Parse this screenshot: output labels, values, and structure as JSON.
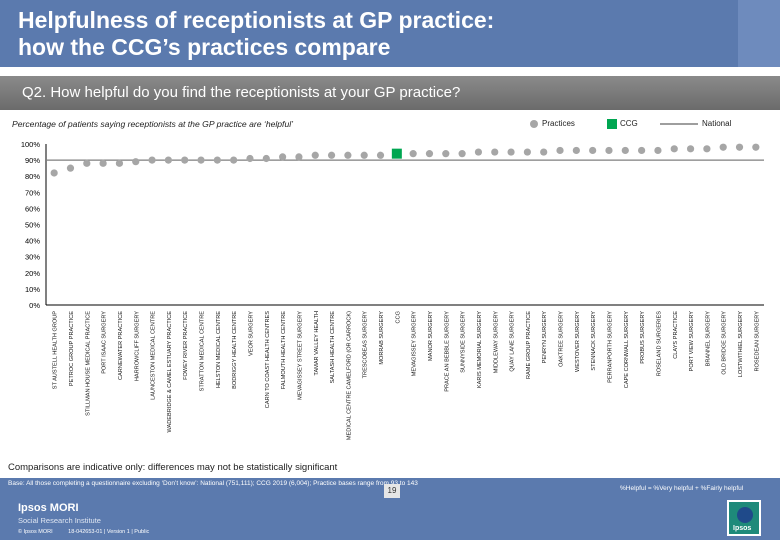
{
  "header": {
    "title_line1": "Helpfulness of receptionists at GP practice:",
    "title_line2": "how the CCG’s practices compare"
  },
  "question": "Q2. How helpful do you find the receptionists at your GP practice?",
  "subtitle": "Percentage of patients saying receptionists at the GP practice are ‘helpful’",
  "legend": {
    "practices": "Practices",
    "ccg": "CCG",
    "national": "National"
  },
  "colors": {
    "practice": "#a6a6a6",
    "ccg": "#00a651",
    "national": "#7f7f7f",
    "axis": "#000000",
    "grid_label": "#000000"
  },
  "chart_data": {
    "type": "scatter",
    "title": "Percentage of patients saying receptionists at the GP practice are ‘helpful’",
    "ylim": [
      0,
      100
    ],
    "yticks": [
      "0%",
      "10%",
      "20%",
      "30%",
      "40%",
      "50%",
      "60%",
      "70%",
      "80%",
      "90%",
      "100%"
    ],
    "ytick_values": [
      0,
      10,
      20,
      30,
      40,
      50,
      60,
      70,
      80,
      90,
      100
    ],
    "national_value": 90,
    "ccg_category": "CCG",
    "categories": [
      "ST AUSTELL HEALTH GROUP",
      "PETROC GROUP PRACTICE",
      "STILLMAN HOUSE MEDICAL PRACTICE",
      "PORT ISAAC SURGERY",
      "CARNEWATER PRACTICE",
      "HARROWCLIFF SURGERY",
      "LAUNCESTON MEDICAL CENTRE",
      "WADEBRIDGE & CAMEL ESTUARY PRACTICE",
      "FOWEY RIVER PRACTICE",
      "STRATTON MEDICAL CENTRE",
      "HELSTON MEDICAL CENTRE",
      "BODRIGGY HEALTH CENTRE",
      "VEOR SURGERY",
      "CARN TO COAST HEALTH CENTRES",
      "FALMOUTH HEALTH CENTRE",
      "MEVAGISSEY STREET SURGERY",
      "TAMAR VALLEY HEALTH",
      "SALTASH HEALTH CENTRE",
      "MEDICAL CENTRE CAMELFORD (OR CARROCK)",
      "TRESCOBEAS SURGERY",
      "MORRAB SURGERY",
      "CCG",
      "MEVAGISSEY SURGERY",
      "MANOR SURGERY",
      "PRACE AN BEBBLE SURGERY",
      "SUNNYSIDE SURGERY",
      "KARIS MEMORIAL SURGERY",
      "MIDDLEWAY SURGERY",
      "QUAY LANE SURGERY",
      "RAME GROUP PRACTICE",
      "PENRYN SURGERY",
      "OAKTREE SURGERY",
      "WESTOVER SURGERY",
      "STENNACK SURGERY",
      "PERRANPORTH SURGERY",
      "CAPE CORNWALL SURGERY",
      "PROBUS SURGERY",
      "ROSELAND SURGERIES",
      "CLAYS PRACTICE",
      "PORT VIEW SURGERY",
      "BRANNEL SURGERY",
      "OLD BRIDGE SURGERY",
      "LOSTWITHIEL SURGERY",
      "ROSEDEAN SURGERY"
    ],
    "values": [
      82,
      85,
      88,
      88,
      88,
      89,
      90,
      90,
      90,
      90,
      90,
      90,
      91,
      91,
      92,
      92,
      93,
      93,
      93,
      93,
      93,
      94,
      94,
      94,
      94,
      94,
      95,
      95,
      95,
      95,
      95,
      96,
      96,
      96,
      96,
      96,
      96,
      96,
      97,
      97,
      97,
      98,
      98,
      98
    ]
  },
  "note": "Comparisons are indicative only: differences may not be statistically significant",
  "base_text": "Base: All those completing a questionnaire excluding ‘Don’t know’: National (751,111); CCG 2019 (6,004); Practice bases range from 93 to 143",
  "definition": "%Helpful = %Very helpful + %Fairly helpful",
  "page_number": "19",
  "brand": {
    "name": "Ipsos MORI",
    "institute": "Social Research Institute",
    "logo_text": "Ipsos"
  },
  "footer": {
    "copyright": "© Ipsos MORI",
    "reference": "18-042653-01 | Version 1 | Public"
  }
}
